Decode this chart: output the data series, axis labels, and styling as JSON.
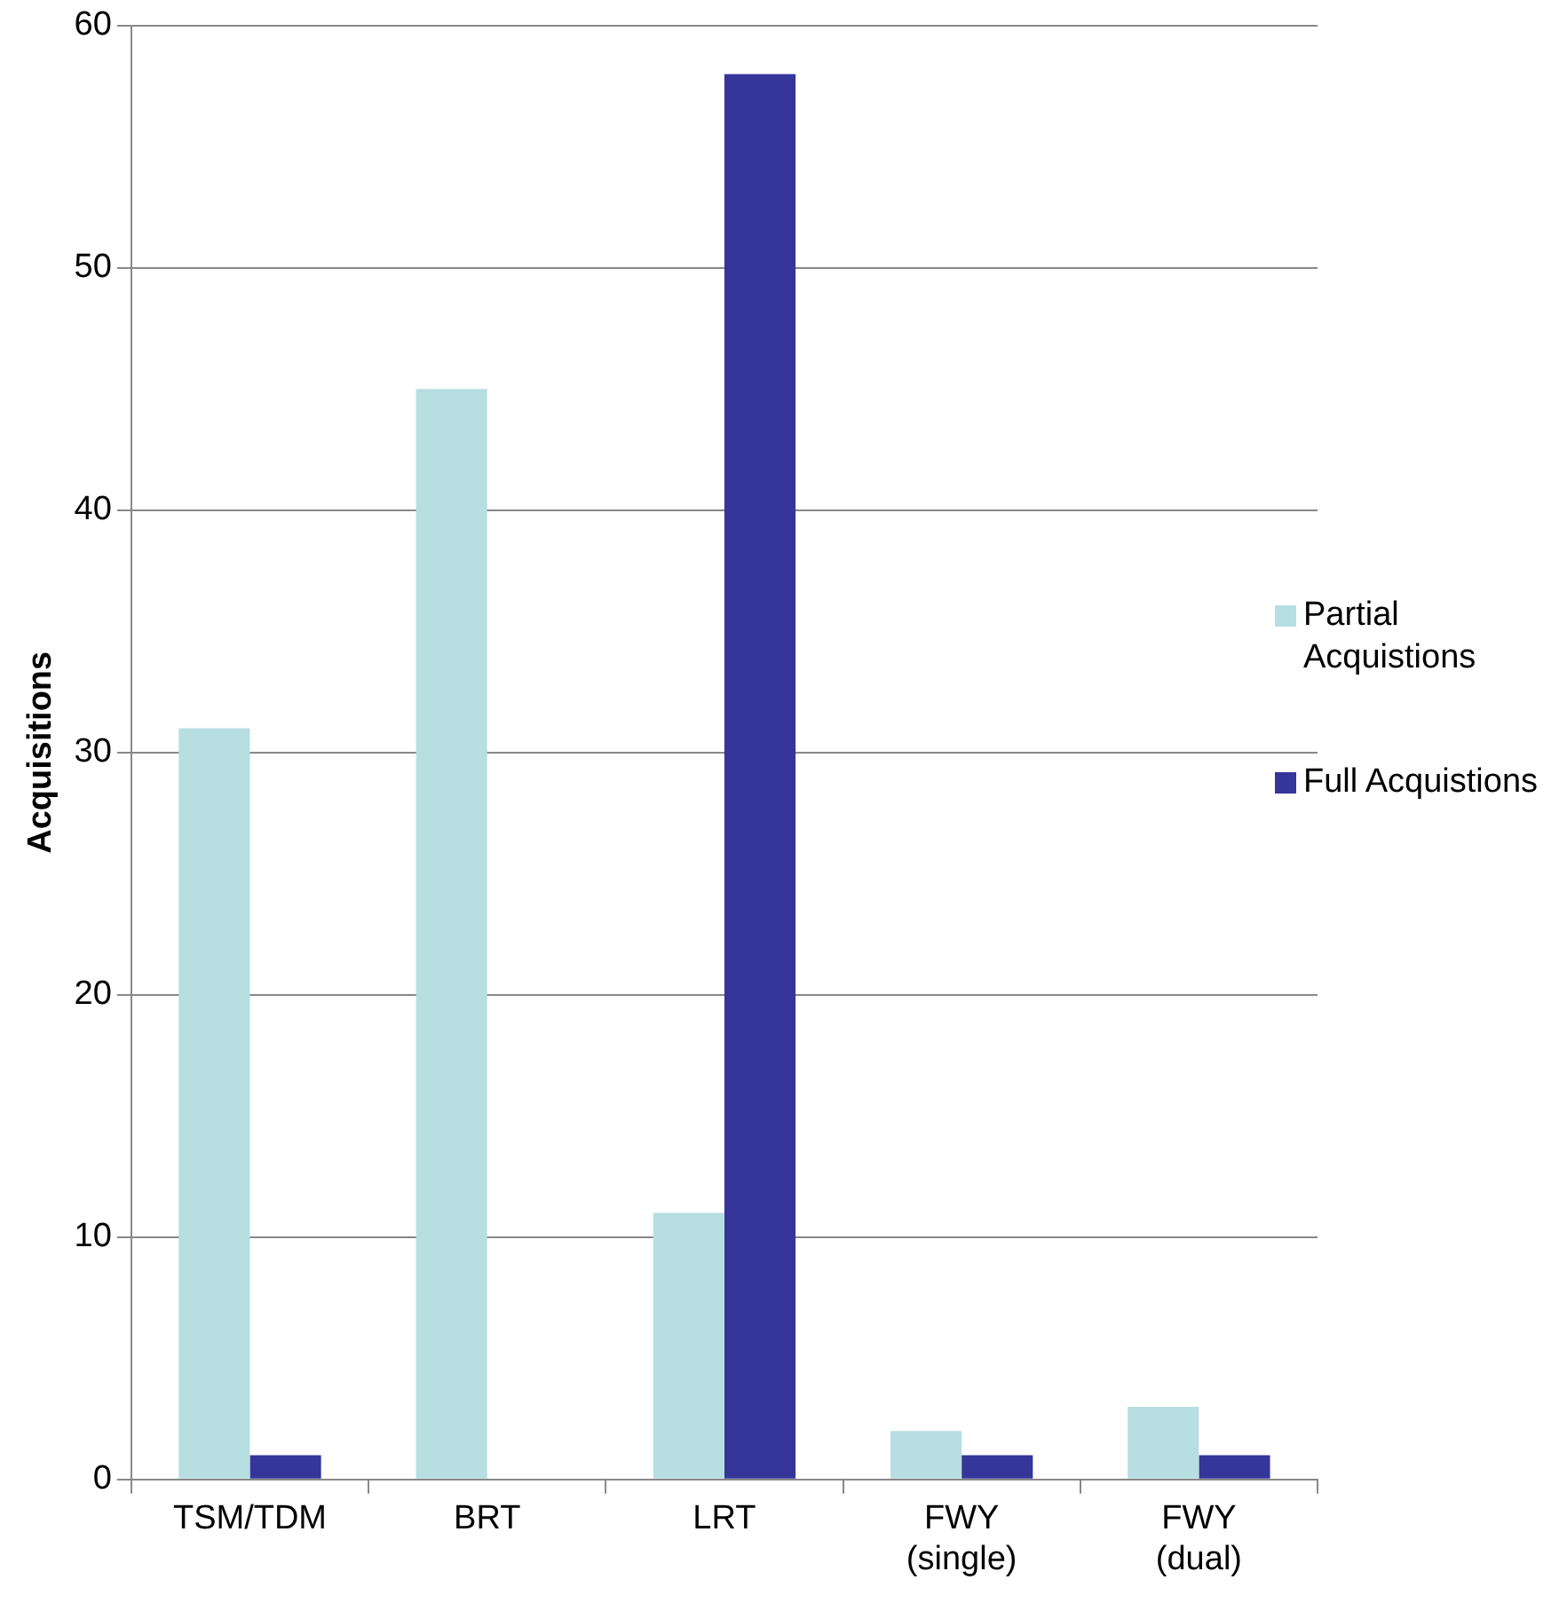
{
  "chart_data": {
    "type": "bar",
    "ylabel": "Acquisitions",
    "categories": [
      "TSM/TDM",
      "BRT",
      "LRT",
      "FWY (single)",
      "FWY (dual)"
    ],
    "series": [
      {
        "name": "Partial Acquistions",
        "color": "#b7dee1",
        "values": [
          31,
          45,
          11,
          2,
          3
        ]
      },
      {
        "name": "Full Acquistions",
        "color": "#35359a",
        "values": [
          1,
          0,
          58,
          1,
          1
        ]
      }
    ],
    "ylim": [
      0,
      60
    ],
    "yticks": [
      0,
      10,
      20,
      30,
      40,
      50,
      60
    ],
    "grid": "y",
    "legend": "right"
  }
}
